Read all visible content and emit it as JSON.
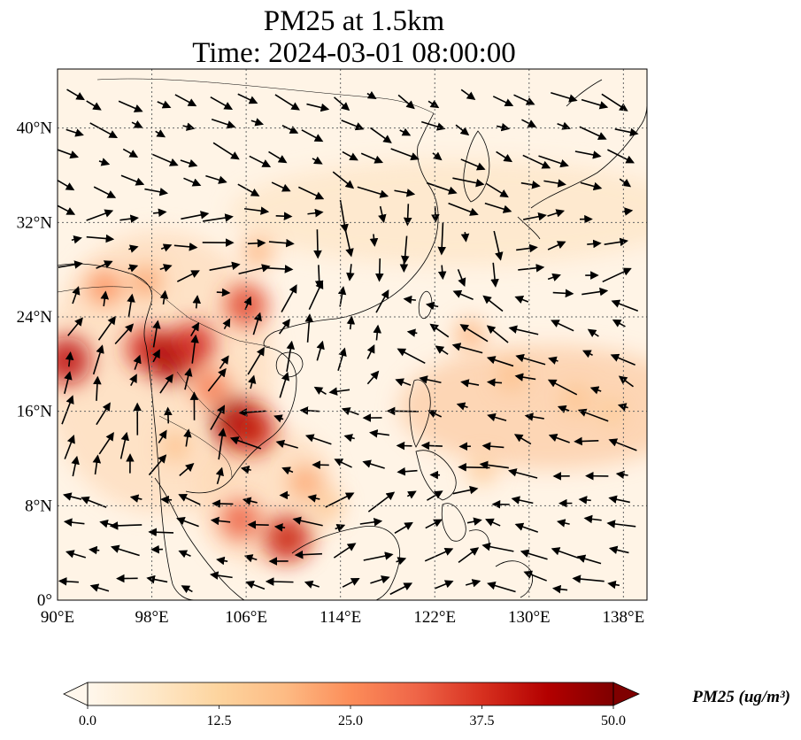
{
  "map": {
    "title_line1": "PM25 at 1.5km",
    "title_line2": "Time: 2024-03-01 08:00:00",
    "lon_range": [
      90,
      140
    ],
    "lat_range": [
      0,
      45
    ],
    "lon_ticks": [
      90,
      98,
      106,
      114,
      122,
      130,
      138
    ],
    "lon_tick_labels": [
      "90°E",
      "98°E",
      "106°E",
      "114°E",
      "122°E",
      "130°E",
      "138°E"
    ],
    "lat_ticks": [
      0,
      8,
      16,
      24,
      32,
      40
    ],
    "lat_tick_labels": [
      "0°",
      "8°N",
      "16°N",
      "24°N",
      "32°N",
      "40°N"
    ],
    "gridlines": true,
    "projection": "PlateCarree",
    "field": "PM25",
    "overlay": "wind vectors"
  },
  "colorbar": {
    "title": "PM25 (ug/m³)",
    "colormap": "OrRd",
    "vmin": 0,
    "vmax": 50,
    "extend": "both",
    "ticks": [
      0,
      12.5,
      25,
      37.5,
      50
    ],
    "tick_labels": [
      "0.0",
      "12.5",
      "25.0",
      "37.5",
      "50.0"
    ],
    "colors": [
      "#fff7ec",
      "#fee8c8",
      "#fdd49e",
      "#fdbb84",
      "#fc8d59",
      "#ef6548",
      "#d7301f",
      "#b30000",
      "#7f0000"
    ]
  },
  "pm25_hotspots": [
    {
      "lon": 90.8,
      "lat": 20.3,
      "value": 42
    },
    {
      "lon": 97.7,
      "lat": 21.3,
      "value": 38
    },
    {
      "lon": 99.7,
      "lat": 20.6,
      "value": 45
    },
    {
      "lon": 101.5,
      "lat": 21.7,
      "value": 38
    },
    {
      "lon": 105.3,
      "lat": 15.0,
      "value": 46
    },
    {
      "lon": 106.5,
      "lat": 14.4,
      "value": 40
    },
    {
      "lon": 106.0,
      "lat": 25.0,
      "value": 35
    },
    {
      "lon": 109.5,
      "lat": 5.2,
      "value": 40
    },
    {
      "lon": 105.5,
      "lat": 6.8,
      "value": 32
    },
    {
      "lon": 103.0,
      "lat": 18.0,
      "value": 28
    },
    {
      "lon": 94.0,
      "lat": 26.5,
      "value": 25
    },
    {
      "lon": 97.5,
      "lat": 27.0,
      "value": 22
    },
    {
      "lon": 107.0,
      "lat": 29.5,
      "value": 20
    },
    {
      "lon": 125.0,
      "lat": 22.5,
      "value": 20
    },
    {
      "lon": 128.5,
      "lat": 19.0,
      "value": 18
    },
    {
      "lon": 134.0,
      "lat": 17.0,
      "value": 17
    },
    {
      "lon": 137.0,
      "lat": 16.0,
      "value": 15
    },
    {
      "lon": 126.0,
      "lat": 11.0,
      "value": 16
    },
    {
      "lon": 111.0,
      "lat": 10.0,
      "value": 22
    },
    {
      "lon": 113.0,
      "lat": 8.0,
      "value": 16
    },
    {
      "lon": 100.0,
      "lat": 13.0,
      "value": 18
    }
  ]
}
